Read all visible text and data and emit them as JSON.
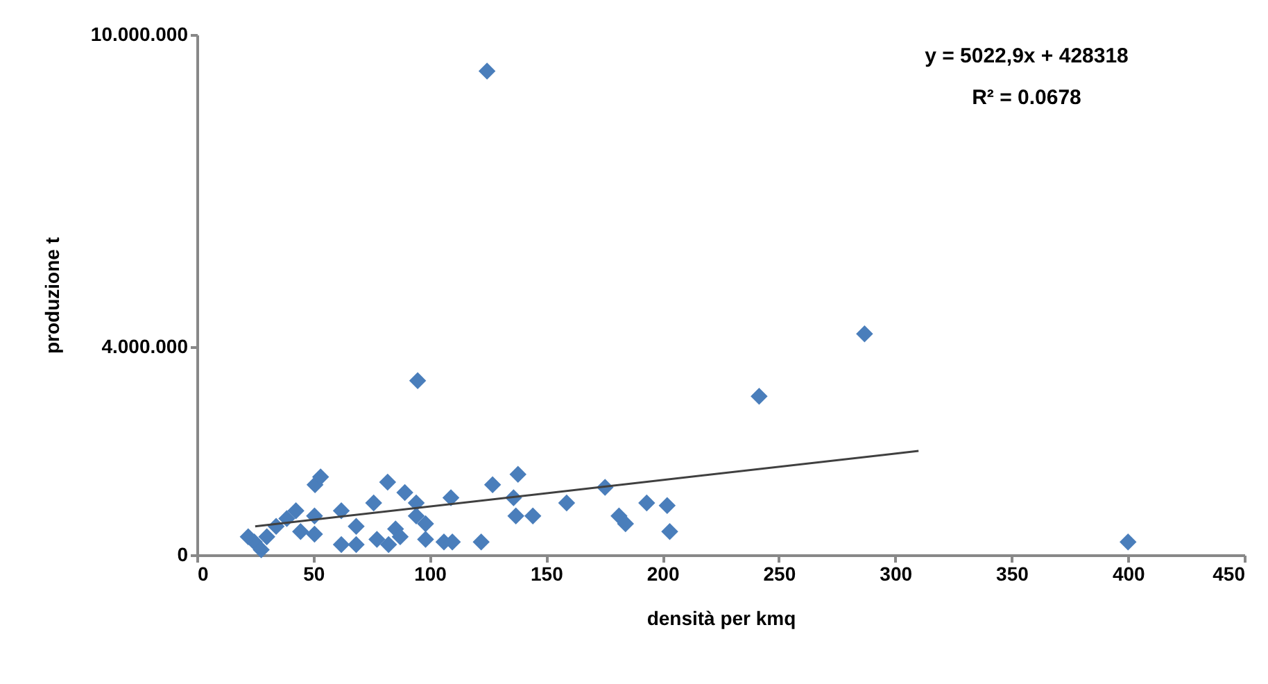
{
  "chart_data": {
    "type": "scatter",
    "xlabel": "densità per kmq",
    "ylabel": "produzione t",
    "annotations": [
      "y = 5022,9x + 428318",
      "R² = 0.0678"
    ],
    "xlim": [
      0,
      450
    ],
    "xticks": [
      0,
      50,
      100,
      150,
      200,
      250,
      300,
      350,
      400,
      450
    ],
    "ylim": [
      0,
      10000000
    ],
    "yticks": [
      0,
      {
        "value": 4000000,
        "label": "4.000.000"
      },
      {
        "value": 10000000,
        "label": "10.000.000"
      }
    ],
    "grid": false,
    "marker": "diamond",
    "series": [
      {
        "color": "#4a7ebb",
        "x": [
          124.6,
          286.8,
          94.8,
          241.5,
          400,
          62,
          62,
          68.4,
          68.4,
          75.9,
          77.3,
          81.9,
          82.3,
          85.3,
          87.3,
          89.3,
          94.2,
          94.2,
          98.2,
          98.2,
          106.1,
          109.7,
          109.1,
          122.1,
          127,
          137.9,
          136,
          137,
          144.3,
          158.8,
          175.3,
          181.3,
          184.1,
          193.2,
          202,
          203.1,
          50.7,
          53.1,
          24.6,
          27.6,
          38.6,
          42.5,
          44.5,
          50.5,
          50.5,
          22,
          30,
          34
        ],
        "values": [
          9300000,
          4250000,
          3350000,
          3050000,
          250000,
          850000,
          200000,
          550000,
          200000,
          1000000,
          300000,
          1400000,
          200000,
          500000,
          350000,
          1200000,
          1000000,
          750000,
          600000,
          300000,
          250000,
          250000,
          1100000,
          250000,
          1350000,
          1550000,
          1100000,
          750000,
          750000,
          1000000,
          1300000,
          750000,
          600000,
          1000000,
          950000,
          450000,
          1350000,
          1500000,
          250000,
          100000,
          700000,
          850000,
          450000,
          750000,
          400000,
          350000,
          350000,
          550000
        ]
      },
      {
        "type": "line",
        "color": "#404040",
        "marker": "none",
        "x": [
          25,
          310
        ],
        "values": [
          550000,
          2000000
        ]
      }
    ]
  }
}
